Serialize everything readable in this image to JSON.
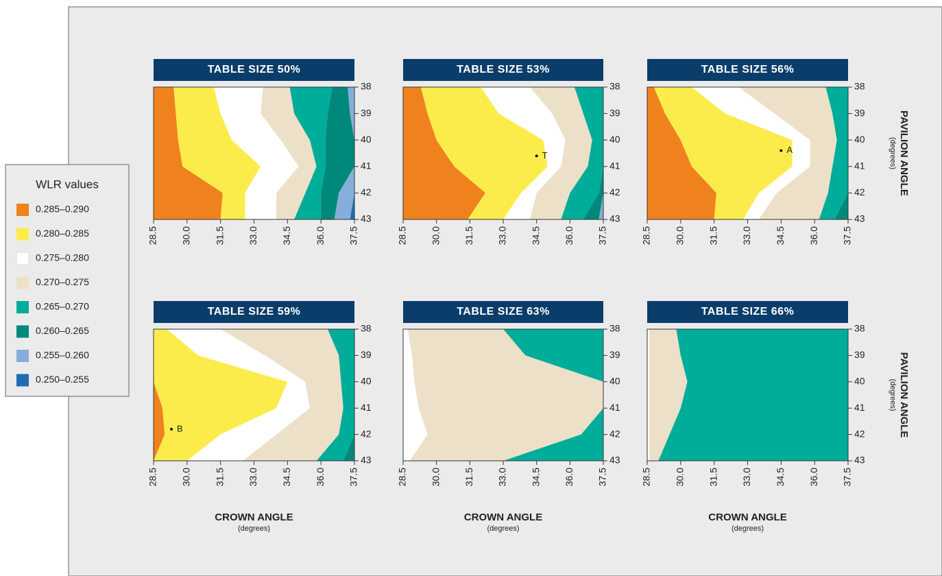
{
  "legend": {
    "title": "WLR values",
    "entries": [
      {
        "name": "0.285–0.290",
        "color": "#f0821e"
      },
      {
        "name": "0.280–0.285",
        "color": "#fbec4b"
      },
      {
        "name": "0.275–0.280",
        "color": "#ffffff"
      },
      {
        "name": "0.270–0.275",
        "color": "#ede0c8"
      },
      {
        "name": "0.265–0.270",
        "color": "#00ad9a"
      },
      {
        "name": "0.260–0.265",
        "color": "#00897a"
      },
      {
        "name": "0.255–0.260",
        "color": "#85aedb"
      },
      {
        "name": "0.250–0.255",
        "color": "#1e6cb4"
      }
    ]
  },
  "chart_data": [
    {
      "type": "contour",
      "title": "TABLE SIZE 50%",
      "xlim": [
        28.5,
        37.5
      ],
      "xticks": [
        28.5,
        {
          "value": 30,
          "label": "30.0"
        },
        31.5,
        {
          "value": 33,
          "label": "33.0"
        },
        34.5,
        {
          "value": 36,
          "label": "36.0"
        },
        37.5
      ],
      "ylim": [
        38,
        43
      ],
      "yticks": [
        38,
        39,
        40,
        41,
        42,
        43
      ],
      "bands": [
        {
          "color": "#f0821e",
          "edge": [
            29.4,
            29.5,
            29.6,
            29.8,
            31.6,
            31.5
          ]
        },
        {
          "color": "#fbec4b",
          "edge": [
            31.2,
            31.5,
            32.0,
            33.3,
            32.6,
            32.6
          ]
        },
        {
          "color": "#ffffff",
          "edge": [
            33.4,
            33.3,
            34.2,
            35.0,
            34.0,
            34.0
          ]
        },
        {
          "color": "#ede0c8",
          "edge": [
            34.6,
            34.8,
            35.5,
            35.8,
            35.3,
            34.8
          ]
        },
        {
          "color": "#00ad9a",
          "edge": [
            36.5,
            36.3,
            36.2,
            36.2,
            36.0,
            36.0
          ]
        },
        {
          "color": "#00897a",
          "edge": [
            37.2,
            37.3,
            37.5,
            37.5,
            36.8,
            36.6
          ]
        },
        {
          "color": "#85aedb",
          "edge": [
            37.5,
            37.5,
            37.5,
            37.5,
            37.5,
            37.3
          ]
        },
        {
          "color": "#1e6cb4",
          "edge": [
            37.5,
            37.5,
            37.5,
            37.5,
            37.5,
            37.5
          ]
        }
      ]
    },
    {
      "type": "contour",
      "title": "TABLE SIZE 53%",
      "xlim": [
        28.5,
        37.5
      ],
      "xticks": [
        28.5,
        {
          "value": 30,
          "label": "30.0"
        },
        31.5,
        {
          "value": 33,
          "label": "33.0"
        },
        34.5,
        {
          "value": 36,
          "label": "36.0"
        },
        37.5
      ],
      "ylim": [
        38,
        43
      ],
      "yticks": [
        38,
        39,
        40,
        41,
        42,
        43
      ],
      "bands": [
        {
          "color": "#f0821e",
          "edge": [
            29.3,
            29.6,
            30.0,
            30.8,
            32.2,
            31.4
          ]
        },
        {
          "color": "#fbec4b",
          "edge": [
            32.0,
            32.8,
            34.8,
            35.0,
            33.8,
            33.0
          ]
        },
        {
          "color": "#ffffff",
          "edge": [
            34.2,
            35.2,
            35.8,
            35.6,
            34.5,
            34.2
          ]
        },
        {
          "color": "#ede0c8",
          "edge": [
            36.2,
            36.6,
            37.0,
            36.8,
            36.0,
            35.6
          ]
        },
        {
          "color": "#00ad9a",
          "edge": [
            37.5,
            37.5,
            37.5,
            37.5,
            37.3,
            36.6
          ]
        },
        {
          "color": "#00897a",
          "edge": [
            37.5,
            37.5,
            37.5,
            37.5,
            37.5,
            37.3
          ]
        },
        {
          "color": "#85aedb",
          "edge": [
            37.5,
            37.5,
            37.5,
            37.5,
            37.5,
            37.5
          ]
        }
      ],
      "points": [
        {
          "label": "T",
          "x": 34.5,
          "y": 40.6
        }
      ]
    },
    {
      "type": "contour",
      "title": "TABLE SIZE 56%",
      "xlim": [
        28.5,
        37.5
      ],
      "xticks": [
        28.5,
        {
          "value": 30,
          "label": "30.0"
        },
        31.5,
        {
          "value": 33,
          "label": "33.0"
        },
        34.5,
        {
          "value": 36,
          "label": "36.0"
        },
        37.5
      ],
      "ylim": [
        38,
        43
      ],
      "yticks": [
        38,
        39,
        40,
        41,
        42,
        43
      ],
      "ylabel": "PAVILION ANGLE",
      "ylabel_unit": "(degrees)",
      "bands": [
        {
          "color": "#f0821e",
          "edge": [
            28.8,
            29.3,
            30.0,
            30.5,
            31.6,
            31.5
          ]
        },
        {
          "color": "#fbec4b",
          "edge": [
            30.5,
            32.0,
            35.0,
            35.0,
            33.5,
            32.8
          ]
        },
        {
          "color": "#ffffff",
          "edge": [
            32.6,
            34.2,
            35.8,
            35.8,
            34.3,
            33.5
          ]
        },
        {
          "color": "#ede0c8",
          "edge": [
            36.5,
            36.8,
            37.0,
            36.8,
            36.6,
            36.2
          ]
        },
        {
          "color": "#00ad9a",
          "edge": [
            37.5,
            37.5,
            37.5,
            37.5,
            37.5,
            36.9
          ]
        },
        {
          "color": "#00897a",
          "edge": [
            37.5,
            37.5,
            37.5,
            37.5,
            37.5,
            37.5
          ]
        }
      ],
      "points": [
        {
          "label": "A",
          "x": 34.5,
          "y": 40.4
        }
      ]
    },
    {
      "type": "contour",
      "title": "TABLE SIZE 59%",
      "xlim": [
        28.5,
        37.5
      ],
      "xticks": [
        28.5,
        {
          "value": 30,
          "label": "30.0"
        },
        31.5,
        {
          "value": 33,
          "label": "33.0"
        },
        34.5,
        {
          "value": 36,
          "label": "36.0"
        },
        37.5
      ],
      "ylim": [
        38,
        43
      ],
      "yticks": [
        38,
        39,
        40,
        41,
        42,
        43
      ],
      "xlabel": "CROWN ANGLE",
      "xlabel_unit": "(degrees)",
      "bands": [
        {
          "color": "#f0821e",
          "edge": [
            28.5,
            28.5,
            28.5,
            28.9,
            29.0,
            28.5
          ]
        },
        {
          "color": "#fbec4b",
          "edge": [
            29.1,
            30.5,
            34.5,
            34.0,
            31.5,
            30.0
          ]
        },
        {
          "color": "#ffffff",
          "edge": [
            31.5,
            33.5,
            35.3,
            35.5,
            34.0,
            32.5
          ]
        },
        {
          "color": "#ede0c8",
          "edge": [
            36.3,
            36.8,
            36.9,
            37.0,
            36.8,
            35.8
          ]
        },
        {
          "color": "#00ad9a",
          "edge": [
            37.5,
            37.5,
            37.5,
            37.5,
            37.5,
            37.0
          ]
        },
        {
          "color": "#00897a",
          "edge": [
            37.5,
            37.5,
            37.5,
            37.5,
            37.5,
            37.5
          ]
        }
      ],
      "points": [
        {
          "label": "B",
          "x": 29.3,
          "y": 41.8
        }
      ]
    },
    {
      "type": "contour",
      "title": "TABLE SIZE 63%",
      "xlim": [
        28.5,
        37.5
      ],
      "xticks": [
        28.5,
        {
          "value": 30,
          "label": "30.0"
        },
        31.5,
        {
          "value": 33,
          "label": "33.0"
        },
        34.5,
        {
          "value": 36,
          "label": "36.0"
        },
        37.5
      ],
      "ylim": [
        38,
        43
      ],
      "yticks": [
        38,
        39,
        40,
        41,
        42,
        43
      ],
      "xlabel": "CROWN ANGLE",
      "xlabel_unit": "(degrees)",
      "bands": [
        {
          "color": "#ffffff",
          "edge": [
            28.7,
            28.9,
            29.0,
            29.2,
            29.6,
            28.8
          ]
        },
        {
          "color": "#ede0c8",
          "edge": [
            33.0,
            34.0,
            37.5,
            37.5,
            36.5,
            33.0
          ]
        },
        {
          "color": "#00ad9a",
          "edge": [
            37.5,
            37.5,
            37.5,
            37.5,
            37.5,
            37.5
          ]
        }
      ]
    },
    {
      "type": "contour",
      "title": "TABLE SIZE 66%",
      "xlim": [
        28.5,
        37.5
      ],
      "xticks": [
        28.5,
        {
          "value": 30,
          "label": "30.0"
        },
        31.5,
        {
          "value": 33,
          "label": "33.0"
        },
        34.5,
        {
          "value": 36,
          "label": "36.0"
        },
        37.5
      ],
      "ylim": [
        38,
        43
      ],
      "yticks": [
        38,
        39,
        40,
        41,
        42,
        43
      ],
      "xlabel": "CROWN ANGLE",
      "xlabel_unit": "(degrees)",
      "ylabel": "PAVILION ANGLE",
      "ylabel_unit": "(degrees)",
      "bands": [
        {
          "color": "#ffffff",
          "edge": [
            28.6,
            28.6,
            28.6,
            28.6,
            28.6,
            28.6
          ]
        },
        {
          "color": "#ede0c8",
          "edge": [
            29.8,
            30.0,
            30.3,
            30.0,
            29.5,
            29.0
          ]
        },
        {
          "color": "#00ad9a",
          "edge": [
            37.5,
            37.5,
            37.5,
            37.5,
            37.5,
            37.5
          ]
        }
      ]
    }
  ]
}
